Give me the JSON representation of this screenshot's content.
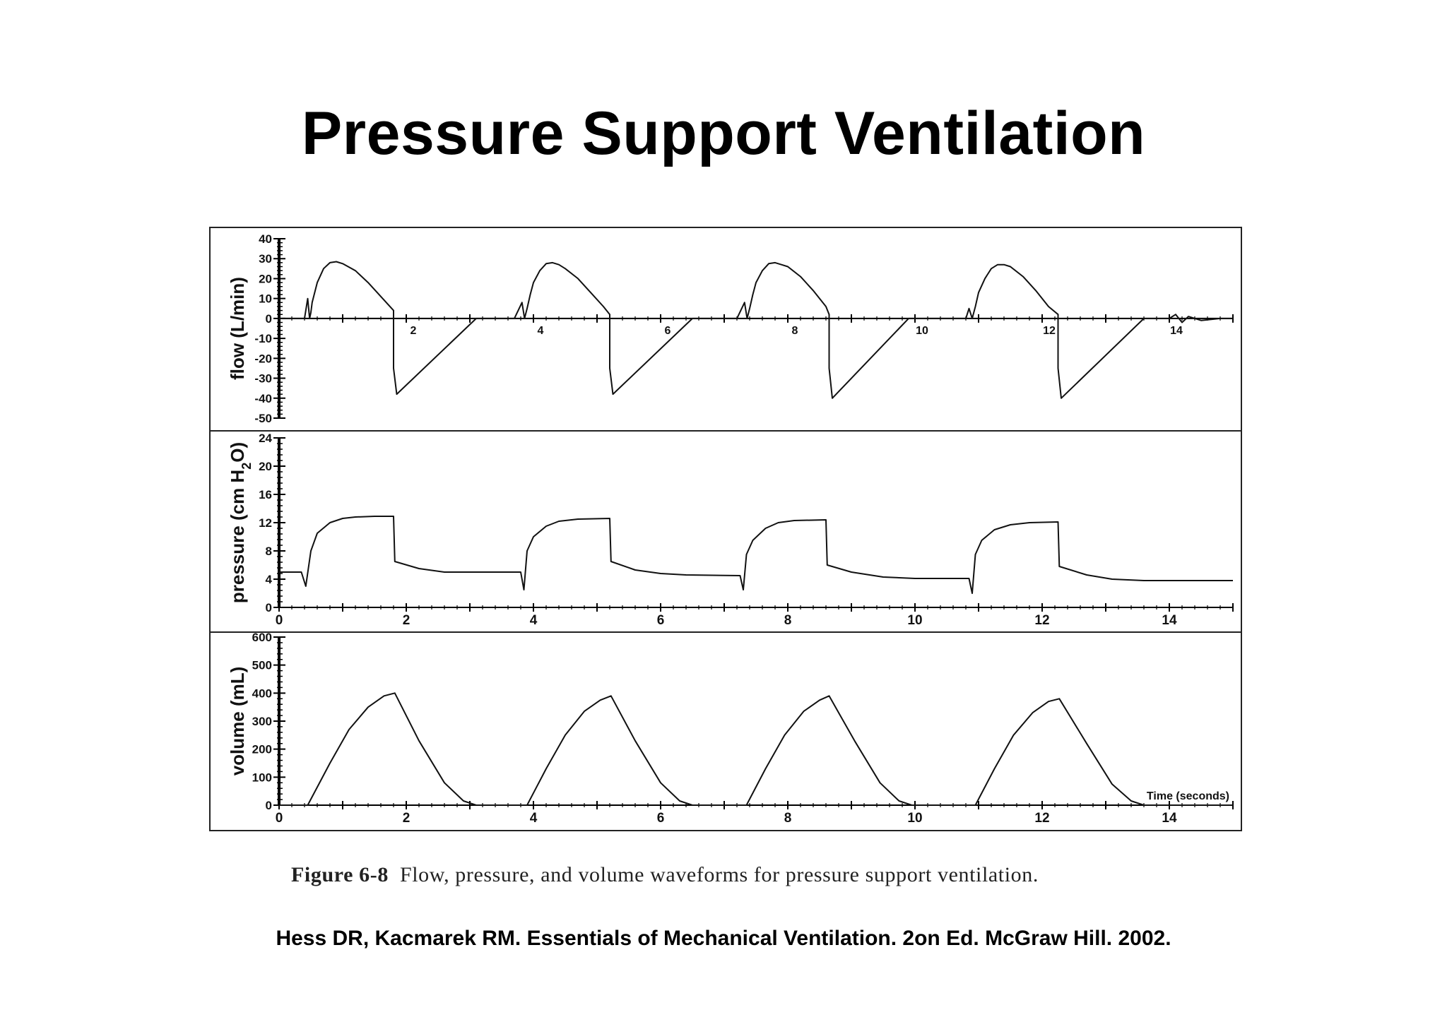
{
  "slide_title": "Pressure Support Ventilation",
  "caption": {
    "label": "Figure 6-8",
    "text": "Flow, pressure, and volume waveforms for pressure support ventilation."
  },
  "citation": "Hess DR, Kacmarek RM. Essentials of Mechanical Ventilation. 2on Ed. McGraw Hill. 2002.",
  "chart_data": [
    {
      "type": "line",
      "ylabel": "flow (L/min)",
      "xlabel": "",
      "xlim": [
        0,
        15
      ],
      "ylim": [
        -50,
        40
      ],
      "yticks": [
        40,
        30,
        20,
        10,
        0,
        -10,
        -20,
        -30,
        -40,
        -50
      ],
      "xtick_labels": [
        2,
        4,
        6,
        8,
        10,
        12,
        14
      ],
      "series": [
        {
          "x": [
            0.0,
            0.4,
            0.45,
            0.48,
            0.5,
            0.52,
            0.6,
            0.7,
            0.8,
            0.9,
            1.0,
            1.2,
            1.4,
            1.6,
            1.8,
            1.8,
            1.85,
            3.1,
            3.7,
            3.82,
            3.86,
            3.9,
            3.95,
            4.0,
            4.1,
            4.2,
            4.3,
            4.4,
            4.5,
            4.7,
            4.9,
            5.1,
            5.2,
            5.2,
            5.25,
            6.5,
            7.2,
            7.32,
            7.36,
            7.4,
            7.45,
            7.5,
            7.6,
            7.7,
            7.8,
            7.9,
            8.0,
            8.2,
            8.4,
            8.6,
            8.65,
            8.65,
            8.7,
            9.9,
            10.8,
            10.85,
            10.9,
            10.95,
            11.0,
            11.1,
            11.2,
            11.3,
            11.4,
            11.5,
            11.7,
            11.9,
            12.1,
            12.25,
            12.25,
            12.3,
            13.6,
            14.0,
            14.1,
            14.2,
            14.3,
            14.5,
            14.8,
            15.0
          ],
          "y": [
            0,
            0,
            10,
            0,
            3,
            8,
            18,
            25,
            28,
            28.5,
            27.5,
            24,
            18,
            11,
            4,
            -25,
            -38,
            0,
            0,
            8,
            0,
            5,
            12,
            18,
            24,
            27.5,
            28,
            27,
            25,
            20,
            13,
            6,
            2,
            -25,
            -38,
            0,
            0,
            8,
            0,
            5,
            12,
            18,
            24,
            27.5,
            28,
            27,
            26,
            21,
            14,
            6,
            2,
            -25,
            -40,
            0,
            0,
            5,
            0,
            6,
            13,
            20,
            25,
            27,
            27,
            26,
            21,
            14,
            6,
            2,
            -25,
            -40,
            0,
            0,
            2,
            -2,
            1,
            -1,
            0,
            0
          ]
        }
      ]
    },
    {
      "type": "line",
      "ylabel": "pressure (cm H2O)",
      "xlabel": "",
      "xlim": [
        0,
        15
      ],
      "ylim": [
        0,
        24
      ],
      "yticks": [
        24,
        20,
        16,
        12,
        8,
        4,
        0
      ],
      "xtick_labels": [
        0,
        2,
        4,
        6,
        8,
        10,
        12,
        14
      ],
      "series": [
        {
          "x": [
            0.0,
            0.35,
            0.42,
            0.5,
            0.6,
            0.8,
            1.0,
            1.2,
            1.5,
            1.8,
            1.82,
            2.2,
            2.6,
            3.0,
            3.8,
            3.85,
            3.9,
            4.0,
            4.2,
            4.4,
            4.7,
            5.2,
            5.22,
            5.6,
            6.0,
            6.4,
            7.25,
            7.3,
            7.35,
            7.45,
            7.65,
            7.85,
            8.1,
            8.6,
            8.62,
            9.0,
            9.5,
            10.0,
            10.85,
            10.9,
            10.95,
            11.05,
            11.25,
            11.5,
            11.8,
            12.25,
            12.27,
            12.7,
            13.1,
            13.6,
            15.0
          ],
          "y": [
            5,
            5,
            3,
            8,
            10.5,
            12,
            12.6,
            12.8,
            12.9,
            12.9,
            6.5,
            5.5,
            5,
            5,
            5,
            2.5,
            8,
            10,
            11.5,
            12.2,
            12.5,
            12.6,
            6.5,
            5.3,
            4.8,
            4.6,
            4.5,
            2.5,
            7.5,
            9.5,
            11.2,
            12,
            12.3,
            12.4,
            6,
            5,
            4.3,
            4.1,
            4.1,
            2,
            7.5,
            9.5,
            11,
            11.7,
            12,
            12.1,
            5.8,
            4.6,
            4,
            3.8,
            3.8
          ]
        }
      ]
    },
    {
      "type": "line",
      "ylabel": "volume (mL)",
      "xlabel": "Time (seconds)",
      "xlim": [
        0,
        15
      ],
      "ylim": [
        0,
        600
      ],
      "yticks": [
        600,
        500,
        400,
        300,
        200,
        100,
        0
      ],
      "xtick_labels": [
        0,
        2,
        4,
        6,
        8,
        10,
        12,
        14
      ],
      "series": [
        {
          "x": [
            0.0,
            0.45,
            0.8,
            1.1,
            1.4,
            1.65,
            1.82,
            2.2,
            2.6,
            2.9,
            3.1,
            3.9,
            4.2,
            4.5,
            4.8,
            5.05,
            5.22,
            5.6,
            6.0,
            6.3,
            6.5,
            7.35,
            7.65,
            7.95,
            8.25,
            8.5,
            8.65,
            9.05,
            9.45,
            9.75,
            9.95,
            10.95,
            11.25,
            11.55,
            11.85,
            12.1,
            12.27,
            12.7,
            13.1,
            13.4,
            13.6,
            15.0
          ],
          "y": [
            0,
            0,
            150,
            270,
            350,
            390,
            400,
            230,
            80,
            15,
            0,
            0,
            130,
            250,
            335,
            375,
            390,
            230,
            80,
            15,
            0,
            0,
            130,
            250,
            335,
            375,
            390,
            230,
            80,
            15,
            0,
            0,
            130,
            250,
            330,
            370,
            380,
            220,
            75,
            15,
            0,
            0
          ]
        }
      ]
    }
  ]
}
